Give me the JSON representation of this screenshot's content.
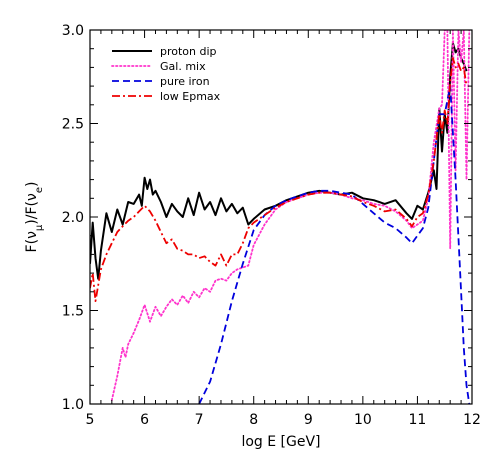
{
  "chart_data": {
    "type": "line",
    "title": "",
    "xlabel": "log E [GeV]",
    "ylabel": "F(νμ)/F(νe)",
    "xlim": [
      5,
      12
    ],
    "ylim": [
      1.0,
      3.0
    ],
    "x_ticks": [
      5,
      6,
      7,
      8,
      9,
      10,
      11,
      12
    ],
    "y_ticks": [
      1.0,
      1.5,
      2.0,
      2.5,
      3.0
    ],
    "x_tick_labels": [
      "5",
      "6",
      "7",
      "8",
      "9",
      "10",
      "11",
      "12"
    ],
    "y_tick_labels": [
      "1.0",
      "1.5",
      "2.0",
      "2.5",
      "3.0"
    ],
    "grid": false,
    "legend_position": "top-left",
    "series": [
      {
        "name": "proton dip",
        "color": "#000000",
        "dash": "solid",
        "x": [
          5.0,
          5.05,
          5.1,
          5.15,
          5.2,
          5.3,
          5.4,
          5.5,
          5.6,
          5.7,
          5.8,
          5.9,
          5.95,
          6.0,
          6.05,
          6.1,
          6.15,
          6.2,
          6.3,
          6.4,
          6.5,
          6.6,
          6.7,
          6.8,
          6.9,
          7.0,
          7.1,
          7.2,
          7.3,
          7.4,
          7.5,
          7.6,
          7.7,
          7.8,
          7.9,
          8.0,
          8.2,
          8.4,
          8.6,
          8.8,
          9.0,
          9.2,
          9.4,
          9.6,
          9.8,
          10.0,
          10.2,
          10.4,
          10.6,
          10.8,
          10.9,
          11.0,
          11.1,
          11.2,
          11.3,
          11.35,
          11.4,
          11.45,
          11.5,
          11.55,
          11.6,
          11.65,
          11.7,
          11.75,
          11.8,
          11.85,
          11.9
        ],
        "y": [
          1.75,
          1.97,
          1.78,
          1.67,
          1.82,
          2.02,
          1.92,
          2.04,
          1.96,
          2.08,
          2.07,
          2.12,
          2.06,
          2.21,
          2.15,
          2.2,
          2.12,
          2.14,
          2.08,
          2.0,
          2.07,
          2.03,
          2.0,
          2.1,
          2.01,
          2.13,
          2.04,
          2.08,
          2.01,
          2.1,
          2.03,
          2.07,
          2.02,
          2.05,
          1.96,
          1.99,
          2.04,
          2.06,
          2.09,
          2.11,
          2.13,
          2.14,
          2.13,
          2.12,
          2.13,
          2.1,
          2.09,
          2.07,
          2.09,
          2.02,
          1.99,
          2.06,
          2.04,
          2.13,
          2.25,
          2.15,
          2.58,
          2.35,
          2.55,
          2.45,
          2.75,
          2.93,
          2.88,
          2.9,
          2.85,
          2.82,
          2.78
        ]
      },
      {
        "name": "Gal. mix",
        "color": "#ff33cc",
        "dash": "dotted",
        "x": [
          5.4,
          5.5,
          5.6,
          5.65,
          5.7,
          5.8,
          5.9,
          6.0,
          6.1,
          6.2,
          6.3,
          6.4,
          6.5,
          6.6,
          6.7,
          6.8,
          6.9,
          7.0,
          7.1,
          7.2,
          7.3,
          7.4,
          7.5,
          7.6,
          7.7,
          7.8,
          7.9,
          8.0,
          8.2,
          8.4,
          8.6,
          8.8,
          9.0,
          9.2,
          9.4,
          9.6,
          9.8,
          10.0,
          10.2,
          10.4,
          10.6,
          10.8,
          10.9,
          11.0,
          11.1,
          11.2,
          11.3,
          11.4,
          11.45,
          11.5,
          11.55,
          11.6,
          11.65,
          11.7,
          11.75,
          11.8,
          11.85,
          11.9,
          11.95
        ],
        "y": [
          1.02,
          1.15,
          1.3,
          1.25,
          1.32,
          1.38,
          1.45,
          1.53,
          1.44,
          1.52,
          1.47,
          1.52,
          1.56,
          1.53,
          1.58,
          1.54,
          1.6,
          1.57,
          1.62,
          1.6,
          1.66,
          1.67,
          1.66,
          1.7,
          1.72,
          1.73,
          1.74,
          1.85,
          1.96,
          2.04,
          2.08,
          2.1,
          2.12,
          2.13,
          2.13,
          2.12,
          2.1,
          2.09,
          2.07,
          2.06,
          2.03,
          1.98,
          1.94,
          1.96,
          1.98,
          2.1,
          2.4,
          2.58,
          2.6,
          3.0,
          3.0,
          1.83,
          3.0,
          2.25,
          3.0,
          2.83,
          3.0,
          2.2,
          3.0
        ]
      },
      {
        "name": "pure iron",
        "color": "#0000dd",
        "dash": "dashed",
        "x": [
          7.0,
          7.2,
          7.4,
          7.6,
          7.8,
          8.0,
          8.2,
          8.4,
          8.6,
          8.8,
          9.0,
          9.2,
          9.4,
          9.6,
          9.8,
          10.0,
          10.2,
          10.4,
          10.6,
          10.8,
          10.9,
          11.0,
          11.1,
          11.2,
          11.3,
          11.4,
          11.5,
          11.6,
          11.7,
          11.8,
          11.85,
          11.9,
          11.95
        ],
        "y": [
          1.0,
          1.12,
          1.32,
          1.55,
          1.75,
          1.93,
          2.01,
          2.06,
          2.09,
          2.11,
          2.13,
          2.14,
          2.14,
          2.13,
          2.12,
          2.07,
          2.02,
          1.97,
          1.94,
          1.89,
          1.86,
          1.9,
          1.94,
          2.05,
          2.3,
          2.55,
          2.55,
          2.7,
          2.2,
          1.6,
          1.3,
          1.1,
          1.0
        ]
      },
      {
        "name": "low Epmax",
        "color": "#ee0000",
        "dash": "dashdot",
        "x": [
          5.0,
          5.05,
          5.1,
          5.2,
          5.3,
          5.4,
          5.5,
          5.6,
          5.7,
          5.8,
          5.9,
          6.0,
          6.1,
          6.2,
          6.3,
          6.4,
          6.5,
          6.6,
          6.7,
          6.8,
          6.9,
          7.0,
          7.1,
          7.2,
          7.3,
          7.4,
          7.5,
          7.6,
          7.7,
          7.8,
          7.9,
          8.0,
          8.2,
          8.4,
          8.6,
          8.8,
          9.0,
          9.2,
          9.4,
          9.6,
          9.8,
          10.0,
          10.2,
          10.4,
          10.6,
          10.8,
          10.9,
          11.0,
          11.1,
          11.2,
          11.3,
          11.4,
          11.45,
          11.5,
          11.55,
          11.6,
          11.65,
          11.7,
          11.75,
          11.8,
          11.85,
          11.9
        ],
        "y": [
          1.62,
          1.7,
          1.55,
          1.72,
          1.8,
          1.86,
          1.92,
          1.95,
          1.98,
          2.0,
          2.03,
          2.06,
          2.03,
          1.98,
          1.92,
          1.86,
          1.88,
          1.83,
          1.82,
          1.8,
          1.8,
          1.78,
          1.79,
          1.76,
          1.74,
          1.8,
          1.74,
          1.8,
          1.8,
          1.86,
          1.94,
          1.97,
          2.01,
          2.05,
          2.08,
          2.1,
          2.12,
          2.13,
          2.13,
          2.12,
          2.11,
          2.08,
          2.06,
          2.03,
          2.04,
          1.99,
          1.95,
          2.0,
          2.02,
          2.12,
          2.3,
          2.55,
          2.45,
          2.57,
          2.5,
          2.72,
          2.85,
          2.8,
          2.82,
          2.78,
          2.8,
          2.7
        ]
      }
    ]
  }
}
